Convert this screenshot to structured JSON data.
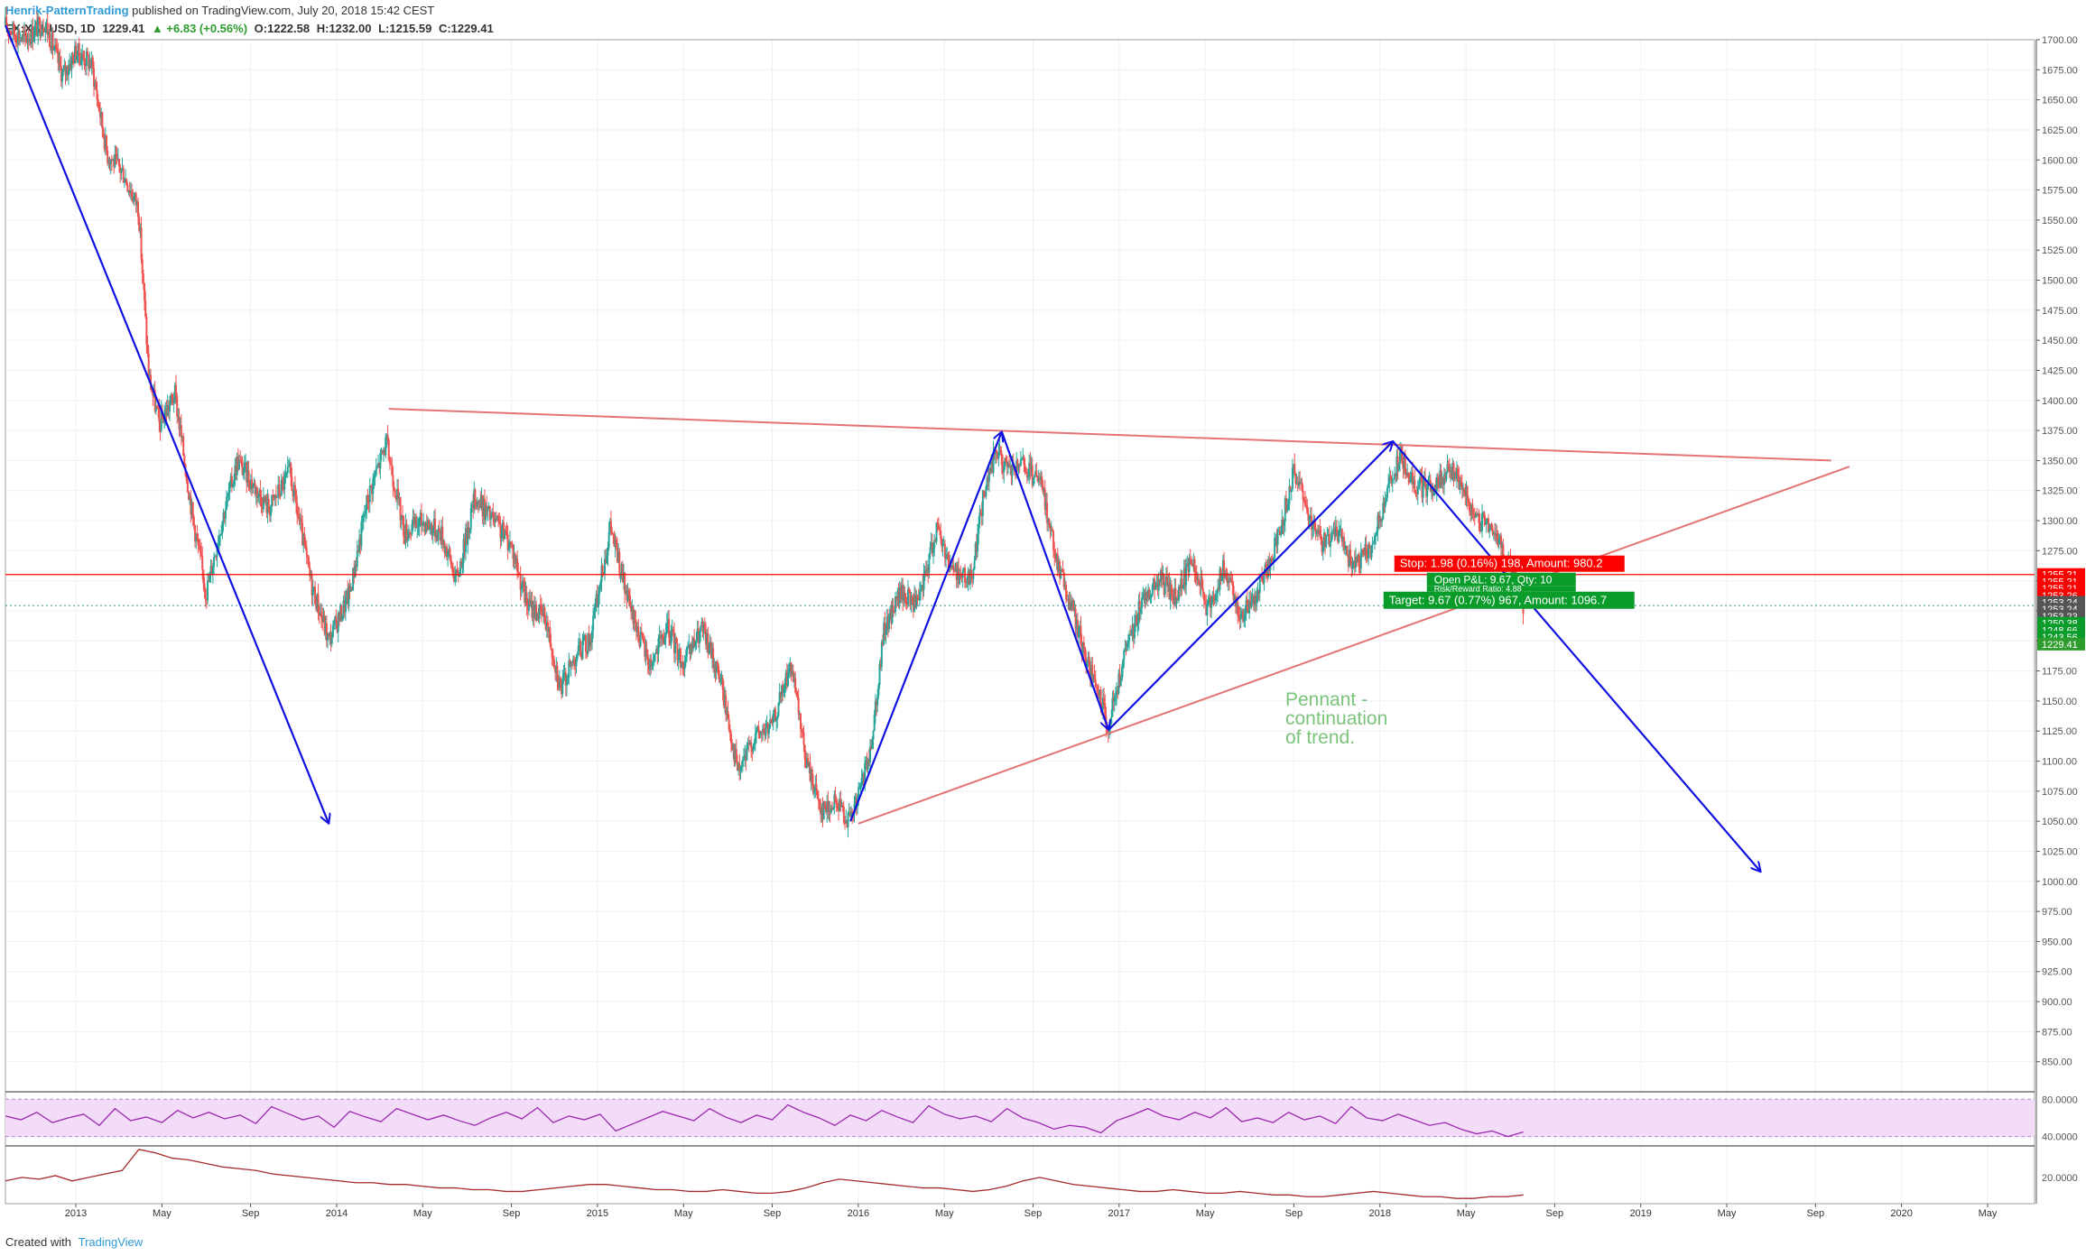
{
  "header": {
    "author": "Henrik-PatternTrading",
    "published": "published on TradingView.com, July 20, 2018 15:42 CEST",
    "symbol": "FX:XAUUSD, 1D",
    "last": "1229.41",
    "change": "▲ +6.83 (+0.56%)",
    "open": "O:1222.58",
    "high": "H:1232.00",
    "low": "L:1215.59",
    "close": "C:1229.41"
  },
  "footer": {
    "created_with": "Created with",
    "brand": "TradingView"
  },
  "colors": {
    "up": "#26a69a",
    "down": "#ef5350",
    "trend": "#1010e0",
    "channel": "#e57373",
    "stop": "#ff0000",
    "target": "#0a9c2a",
    "rsi": "#9c27b0",
    "rsi_band": "#f3dcf8",
    "atr": "#a52a2a",
    "annotation": "#7cc47c"
  },
  "chart_data": [
    {
      "type": "candlestick",
      "symbol": "FX:XAUUSD",
      "interval": "1D",
      "ylim": [
        825,
        1700
      ],
      "y_ticks": [
        "1700.00",
        "1675.00",
        "1650.00",
        "1625.00",
        "1600.00",
        "1575.00",
        "1550.00",
        "1525.00",
        "1500.00",
        "1475.00",
        "1450.00",
        "1425.00",
        "1400.00",
        "1375.00",
        "1350.00",
        "1325.00",
        "1300.00",
        "1275.00",
        "1250.00",
        "1225.00",
        "1200.00",
        "1175.00",
        "1150.00",
        "1125.00",
        "1100.00",
        "1075.00",
        "1050.00",
        "1025.00",
        "1000.00",
        "975.00",
        "950.00",
        "925.00",
        "900.00",
        "875.00",
        "850.00"
      ],
      "x_ticks": [
        {
          "label": "2013",
          "t": 2013.0
        },
        {
          "label": "May",
          "t": 2013.33
        },
        {
          "label": "Sep",
          "t": 2013.67
        },
        {
          "label": "2014",
          "t": 2014.0
        },
        {
          "label": "May",
          "t": 2014.33
        },
        {
          "label": "Sep",
          "t": 2014.67
        },
        {
          "label": "2015",
          "t": 2015.0
        },
        {
          "label": "May",
          "t": 2015.33
        },
        {
          "label": "Sep",
          "t": 2015.67
        },
        {
          "label": "2016",
          "t": 2016.0
        },
        {
          "label": "May",
          "t": 2016.33
        },
        {
          "label": "Sep",
          "t": 2016.67
        },
        {
          "label": "2017",
          "t": 2017.0
        },
        {
          "label": "May",
          "t": 2017.33
        },
        {
          "label": "Sep",
          "t": 2017.67
        },
        {
          "label": "2018",
          "t": 2018.0
        },
        {
          "label": "May",
          "t": 2018.33
        },
        {
          "label": "Sep",
          "t": 2018.67
        },
        {
          "label": "2019",
          "t": 2019.0
        },
        {
          "label": "May",
          "t": 2019.33
        },
        {
          "label": "Sep",
          "t": 2019.67
        },
        {
          "label": "2020",
          "t": 2020.0
        },
        {
          "label": "May",
          "t": 2020.33
        }
      ],
      "price_path": [
        [
          2012.73,
          1712
        ],
        [
          2012.8,
          1700
        ],
        [
          2012.88,
          1715
        ],
        [
          2012.95,
          1670
        ],
        [
          2013.0,
          1690
        ],
        [
          2013.06,
          1680
        ],
        [
          2013.12,
          1605
        ],
        [
          2013.18,
          1590
        ],
        [
          2013.24,
          1560
        ],
        [
          2013.28,
          1420
        ],
        [
          2013.32,
          1380
        ],
        [
          2013.38,
          1405
        ],
        [
          2013.45,
          1300
        ],
        [
          2013.5,
          1240
        ],
        [
          2013.56,
          1300
        ],
        [
          2013.62,
          1350
        ],
        [
          2013.68,
          1330
        ],
        [
          2013.74,
          1310
        ],
        [
          2013.82,
          1340
        ],
        [
          2013.9,
          1250
        ],
        [
          2013.97,
          1200
        ],
        [
          2014.05,
          1240
        ],
        [
          2014.12,
          1320
        ],
        [
          2014.19,
          1365
        ],
        [
          2014.26,
          1290
        ],
        [
          2014.33,
          1300
        ],
        [
          2014.4,
          1290
        ],
        [
          2014.46,
          1250
        ],
        [
          2014.53,
          1320
        ],
        [
          2014.6,
          1300
        ],
        [
          2014.67,
          1280
        ],
        [
          2014.73,
          1230
        ],
        [
          2014.8,
          1220
        ],
        [
          2014.86,
          1160
        ],
        [
          2014.92,
          1190
        ],
        [
          2014.97,
          1200
        ],
        [
          2015.05,
          1295
        ],
        [
          2015.12,
          1230
        ],
        [
          2015.2,
          1180
        ],
        [
          2015.27,
          1210
        ],
        [
          2015.33,
          1180
        ],
        [
          2015.4,
          1210
        ],
        [
          2015.47,
          1170
        ],
        [
          2015.54,
          1090
        ],
        [
          2015.6,
          1120
        ],
        [
          2015.67,
          1130
        ],
        [
          2015.74,
          1180
        ],
        [
          2015.8,
          1100
        ],
        [
          2015.86,
          1060
        ],
        [
          2015.92,
          1065
        ],
        [
          2015.97,
          1050
        ],
        [
          2016.04,
          1100
        ],
        [
          2016.1,
          1210
        ],
        [
          2016.16,
          1240
        ],
        [
          2016.23,
          1230
        ],
        [
          2016.3,
          1295
        ],
        [
          2016.36,
          1260
        ],
        [
          2016.43,
          1250
        ],
        [
          2016.48,
          1320
        ],
        [
          2016.53,
          1360
        ],
        [
          2016.57,
          1340
        ],
        [
          2016.63,
          1345
        ],
        [
          2016.7,
          1330
        ],
        [
          2016.77,
          1260
        ],
        [
          2016.83,
          1220
        ],
        [
          2016.88,
          1180
        ],
        [
          2016.96,
          1130
        ],
        [
          2017.03,
          1195
        ],
        [
          2017.1,
          1240
        ],
        [
          2017.16,
          1250
        ],
        [
          2017.22,
          1235
        ],
        [
          2017.28,
          1270
        ],
        [
          2017.34,
          1225
        ],
        [
          2017.4,
          1260
        ],
        [
          2017.47,
          1220
        ],
        [
          2017.53,
          1240
        ],
        [
          2017.6,
          1280
        ],
        [
          2017.67,
          1340
        ],
        [
          2017.72,
          1310
        ],
        [
          2017.78,
          1280
        ],
        [
          2017.84,
          1290
        ],
        [
          2017.9,
          1260
        ],
        [
          2017.97,
          1280
        ],
        [
          2018.04,
          1330
        ],
        [
          2018.08,
          1355
        ],
        [
          2018.13,
          1330
        ],
        [
          2018.2,
          1325
        ],
        [
          2018.27,
          1345
        ],
        [
          2018.33,
          1320
        ],
        [
          2018.38,
          1300
        ],
        [
          2018.43,
          1295
        ],
        [
          2018.48,
          1270
        ],
        [
          2018.53,
          1245
        ],
        [
          2018.55,
          1229.41
        ]
      ],
      "drawings": {
        "trend_arrows": [
          [
            [
              2012.73,
              1712
            ],
            [
              2013.97,
              1048
            ]
          ],
          [
            [
              2015.97,
              1050
            ],
            [
              2016.55,
              1374
            ]
          ],
          [
            [
              2016.55,
              1374
            ],
            [
              2016.96,
              1126
            ]
          ],
          [
            [
              2016.96,
              1126
            ],
            [
              2018.05,
              1366
            ]
          ],
          [
            [
              2018.05,
              1366
            ],
            [
              2018.58,
              1230
            ]
          ],
          [
            [
              2018.58,
              1230
            ],
            [
              2019.46,
              1008
            ]
          ]
        ],
        "pennant_upper": [
          [
            2014.2,
            1393
          ],
          [
            2019.73,
            1350
          ]
        ],
        "pennant_lower": [
          [
            2016.0,
            1048
          ],
          [
            2019.8,
            1345
          ]
        ],
        "horizontal_level": 1255.21,
        "current_price_line": 1229.41
      },
      "price_labels": [
        {
          "text": "1255.21",
          "price": 1255.21,
          "color": "#ff0000"
        },
        {
          "text": "1255.21",
          "price": 1249.5,
          "color": "#ff0000"
        },
        {
          "text": "1255.21",
          "price": 1243.7,
          "color": "#ff0000"
        },
        {
          "text": "1253.26",
          "price": 1237.9,
          "color": "#ff0000"
        },
        {
          "text": "1253.24",
          "price": 1232.1,
          "color": "#555555"
        },
        {
          "text": "1253.24",
          "price": 1226.3,
          "color": "#555555"
        },
        {
          "text": "1253.23",
          "price": 1220.5,
          "color": "#555555"
        },
        {
          "text": "1250.38",
          "price": 1214.7,
          "color": "#0a9c2a"
        },
        {
          "text": "1248.66",
          "price": 1208.9,
          "color": "#0a9c2a"
        },
        {
          "text": "1243.56",
          "price": 1203.1,
          "color": "#0a9c2a"
        },
        {
          "text": "1229.41",
          "price": 1197.3,
          "color": "#2e9d2e"
        }
      ],
      "position_tool": {
        "stop": "Stop: 1.98 (0.16%) 198, Amount: 980.2",
        "open_pl": "Open P&L: 9.67, Qty: 10",
        "risk_reward": "Risk/Reward Ratio: 4.88",
        "target": "Target: 9.67 (0.77%) 967, Amount: 1096.7"
      },
      "annotation": [
        "Pennant -",
        "continuation",
        "of trend."
      ]
    },
    {
      "type": "line",
      "indicator": "RSI",
      "y_ticks": [
        "80.0000",
        "40.0000"
      ],
      "band": [
        40,
        80
      ],
      "ylim": [
        30,
        88
      ],
      "values": [
        62,
        58,
        66,
        55,
        60,
        64,
        52,
        70,
        57,
        61,
        55,
        68,
        60,
        66,
        59,
        63,
        54,
        72,
        65,
        58,
        62,
        50,
        67,
        61,
        56,
        70,
        64,
        58,
        63,
        57,
        52,
        60,
        66,
        59,
        71,
        55,
        62,
        58,
        64,
        46,
        53,
        60,
        67,
        62,
        57,
        70,
        61,
        55,
        63,
        58,
        74,
        66,
        60,
        52,
        63,
        57,
        68,
        61,
        55,
        73,
        64,
        59,
        62,
        56,
        70,
        60,
        55,
        48,
        52,
        50,
        44,
        57,
        63,
        70,
        62,
        58,
        66,
        60,
        71,
        56,
        60,
        55,
        66,
        58,
        62,
        54,
        72,
        60,
        57,
        64,
        58,
        52,
        55,
        48,
        43,
        46,
        40,
        45
      ]
    },
    {
      "type": "line",
      "indicator": "ATR",
      "y_ticks": [
        "20.0000"
      ],
      "ylim": [
        5,
        38
      ],
      "values": [
        18,
        20,
        19,
        21,
        18,
        20,
        22,
        24,
        36,
        34,
        31,
        30,
        28,
        26,
        25,
        24,
        22,
        21,
        20,
        19,
        18,
        17,
        17,
        16,
        16,
        15,
        14,
        14,
        13,
        13,
        12,
        12,
        13,
        14,
        15,
        16,
        16,
        15,
        14,
        13,
        13,
        12,
        12,
        13,
        12,
        11,
        11,
        12,
        14,
        17,
        19,
        18,
        17,
        16,
        15,
        14,
        14,
        13,
        12,
        13,
        15,
        18,
        20,
        18,
        16,
        15,
        14,
        13,
        12,
        12,
        13,
        12,
        11,
        11,
        12,
        11,
        10,
        10,
        9,
        9,
        10,
        11,
        12,
        11,
        10,
        9,
        9,
        8,
        8,
        9,
        9,
        10
      ]
    }
  ]
}
